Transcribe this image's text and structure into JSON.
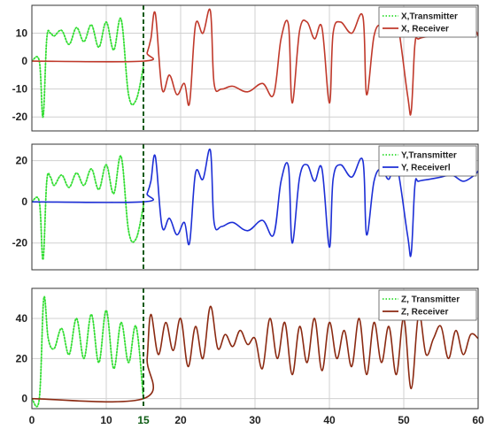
{
  "chart_data": [
    {
      "type": "line",
      "xlim": [
        0,
        60
      ],
      "ylim": [
        -25,
        20
      ],
      "yticks": [
        -20,
        -10,
        0,
        10
      ],
      "grid": true,
      "legend_position": "top-right",
      "series": [
        {
          "name": "X,Transmitter",
          "style": "dotted",
          "color": "#33dd33",
          "x": [
            0,
            1,
            1.5,
            2,
            2.5,
            3,
            4,
            5,
            6,
            7,
            8,
            9,
            10,
            11,
            12,
            13,
            14,
            15
          ],
          "y": [
            0,
            0,
            -20,
            8,
            10,
            9,
            11,
            6,
            12,
            7,
            13,
            5,
            14,
            4,
            15,
            -12,
            -14,
            -2
          ]
        },
        {
          "name": "X, Receiver",
          "style": "solid",
          "color": "#c0392b",
          "x": [
            0,
            15,
            15.5,
            16,
            16.6,
            17.5,
            18.5,
            19.5,
            20.5,
            21.2,
            22,
            23,
            24,
            24.5,
            25.5,
            27,
            29,
            31,
            32.5,
            33.5,
            34.5,
            35,
            36,
            37,
            38,
            39,
            40,
            40.5,
            41.5,
            43,
            44.5,
            45,
            46,
            47,
            48,
            49,
            50.5,
            51,
            51.5,
            52,
            53.5,
            55,
            56.5,
            58,
            59.5,
            60
          ],
          "y": [
            0,
            0,
            3,
            8,
            17,
            -10,
            -5,
            -12,
            -8,
            -15,
            13,
            10,
            18,
            -8,
            -10,
            -9,
            -11,
            -8,
            -12,
            8,
            13,
            -15,
            11,
            14,
            8,
            12,
            -15,
            10,
            14,
            10,
            16,
            -12,
            9,
            13,
            10,
            16,
            -12,
            -18,
            6,
            8,
            9,
            10,
            11,
            9,
            11,
            9
          ]
        }
      ]
    },
    {
      "type": "line",
      "xlim": [
        0,
        60
      ],
      "ylim": [
        -33,
        28
      ],
      "yticks": [
        -20,
        0,
        20
      ],
      "grid": true,
      "legend_position": "top-right",
      "series": [
        {
          "name": "Y,Transmitter",
          "style": "dotted",
          "color": "#33dd33",
          "x": [
            0,
            1,
            1.5,
            2,
            2.5,
            3,
            4,
            5,
            6,
            7,
            8,
            9,
            10,
            11,
            12,
            13,
            14,
            15
          ],
          "y": [
            0,
            0,
            -28,
            10,
            12,
            8,
            13,
            7,
            14,
            8,
            16,
            6,
            18,
            4,
            22,
            -14,
            -18,
            -2
          ]
        },
        {
          "name": "Y, Receiverl",
          "style": "solid",
          "color": "#1d2fd6",
          "x": [
            0,
            15,
            15.5,
            16,
            16.6,
            17.5,
            18.5,
            19.5,
            20.5,
            21.2,
            22,
            23,
            24,
            24.5,
            25.5,
            27,
            29,
            31,
            32.5,
            33.5,
            34.5,
            35,
            36,
            37,
            38,
            39,
            40,
            40.5,
            41.5,
            43,
            44.5,
            45,
            46,
            47,
            48,
            49,
            50.5,
            51,
            51.5,
            52,
            53.5,
            55,
            56.5,
            58,
            59.5,
            60
          ],
          "y": [
            0,
            0,
            4,
            10,
            22,
            -12,
            -8,
            -16,
            -10,
            -20,
            14,
            11,
            25,
            -10,
            -12,
            -10,
            -14,
            -9,
            -16,
            10,
            17,
            -20,
            12,
            18,
            10,
            16,
            -22,
            11,
            18,
            12,
            20,
            -16,
            10,
            16,
            11,
            19,
            -16,
            -25,
            8,
            10,
            11,
            12,
            13,
            10,
            13,
            15
          ]
        }
      ]
    },
    {
      "type": "line",
      "xlim": [
        0,
        60
      ],
      "ylim": [
        -5,
        55
      ],
      "yticks": [
        0,
        20,
        40
      ],
      "grid": true,
      "legend_position": "top-right",
      "xticks": [
        "0",
        "10",
        "15",
        "20",
        "30",
        "40",
        "50",
        "60"
      ],
      "xtick_values": [
        0,
        10,
        15,
        20,
        30,
        40,
        50,
        60
      ],
      "highlight_tick": "15",
      "series": [
        {
          "name": "Z, Transmitter",
          "style": "dotted",
          "color": "#33dd33",
          "x": [
            0,
            1,
            1.6,
            2.2,
            3,
            4,
            5,
            6,
            7,
            8,
            9,
            10,
            11,
            12,
            13,
            14,
            15
          ],
          "y": [
            0,
            0,
            50,
            30,
            25,
            35,
            22,
            40,
            20,
            42,
            18,
            44,
            15,
            38,
            18,
            36,
            0
          ]
        },
        {
          "name": "Z, Receiver",
          "style": "solid",
          "color": "#8b2a12",
          "x": [
            0,
            15,
            15.5,
            16,
            17,
            18,
            19,
            20,
            21,
            22,
            23,
            24,
            25,
            26,
            27,
            28,
            29,
            30,
            31,
            32,
            33,
            34,
            35,
            36,
            37,
            38,
            39,
            40,
            41,
            42,
            43,
            44,
            45,
            46,
            47,
            48,
            49,
            50,
            51,
            52,
            53,
            54,
            55,
            56,
            57,
            58,
            59,
            60
          ],
          "y": [
            0,
            0,
            20,
            42,
            22,
            38,
            24,
            40,
            16,
            36,
            20,
            46,
            25,
            32,
            26,
            34,
            27,
            30,
            15,
            40,
            20,
            38,
            12,
            36,
            18,
            40,
            14,
            38,
            20,
            34,
            16,
            40,
            12,
            38,
            18,
            36,
            12,
            40,
            5,
            42,
            22,
            30,
            36,
            20,
            34,
            22,
            32,
            30
          ]
        }
      ]
    }
  ]
}
